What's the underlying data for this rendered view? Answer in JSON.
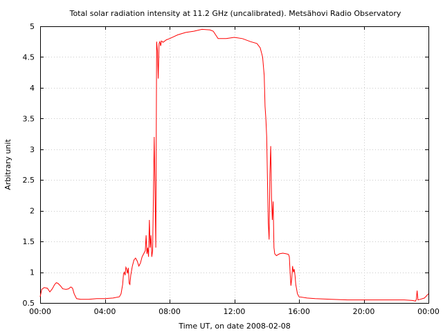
{
  "chart_data": {
    "type": "line",
    "title": "Total solar radiation intensity at 11.2 GHz (uncalibrated). Metsähovi Radio Observatory",
    "xlabel": "Time UT, on date 2008-02-08",
    "ylabel": "Arbitrary unit",
    "xlim": [
      0,
      24
    ],
    "ylim": [
      0.5,
      5
    ],
    "grid": true,
    "x_ticks": [
      {
        "value": 0,
        "label": "00:00"
      },
      {
        "value": 4,
        "label": "04:00"
      },
      {
        "value": 8,
        "label": "08:00"
      },
      {
        "value": 12,
        "label": "12:00"
      },
      {
        "value": 16,
        "label": "16:00"
      },
      {
        "value": 20,
        "label": "20:00"
      },
      {
        "value": 24,
        "label": "00:00"
      }
    ],
    "y_ticks": [
      {
        "value": 0.5,
        "label": "0.5"
      },
      {
        "value": 1,
        "label": "1"
      },
      {
        "value": 1.5,
        "label": "1.5"
      },
      {
        "value": 2,
        "label": "2"
      },
      {
        "value": 2.5,
        "label": "2.5"
      },
      {
        "value": 3,
        "label": "3"
      },
      {
        "value": 3.5,
        "label": "3.5"
      },
      {
        "value": 4,
        "label": "4"
      },
      {
        "value": 4.5,
        "label": "4.5"
      },
      {
        "value": 5,
        "label": "5"
      }
    ],
    "series": [
      {
        "color": "#ff0000",
        "x": [
          0.0,
          0.1,
          0.25,
          0.45,
          0.6,
          0.75,
          0.9,
          1.0,
          1.1,
          1.25,
          1.4,
          1.6,
          1.75,
          1.9,
          2.0,
          2.1,
          2.25,
          2.5,
          3.0,
          3.5,
          4.0,
          4.5,
          4.9,
          5.0,
          5.1,
          5.15,
          5.2,
          5.25,
          5.3,
          5.35,
          5.4,
          5.45,
          5.5,
          5.55,
          5.6,
          5.7,
          5.8,
          5.9,
          6.0,
          6.1,
          6.2,
          6.3,
          6.4,
          6.5,
          6.55,
          6.6,
          6.65,
          6.7,
          6.75,
          6.8,
          6.85,
          6.9,
          6.95,
          7.0,
          7.05,
          7.1,
          7.15,
          7.2,
          7.25,
          7.3,
          7.35,
          7.4,
          7.45,
          7.5,
          7.6,
          7.7,
          7.8,
          8.0,
          8.5,
          9.0,
          9.5,
          10.0,
          10.5,
          10.7,
          11.0,
          11.5,
          12.0,
          12.5,
          13.0,
          13.4,
          13.6,
          13.75,
          13.85,
          13.9,
          13.95,
          14.0,
          14.05,
          14.1,
          14.15,
          14.2,
          14.25,
          14.3,
          14.35,
          14.4,
          14.45,
          14.5,
          14.6,
          14.8,
          15.0,
          15.2,
          15.35,
          15.4,
          15.45,
          15.5,
          15.55,
          15.6,
          15.65,
          15.7,
          15.75,
          15.8,
          15.9,
          16.0,
          16.5,
          17.0,
          18.0,
          19.0,
          20.0,
          21.0,
          22.0,
          22.5,
          23.0,
          23.2,
          23.25,
          23.3,
          23.35,
          23.5,
          23.75,
          24.0
        ],
        "y": [
          0.6,
          0.72,
          0.75,
          0.74,
          0.68,
          0.73,
          0.8,
          0.83,
          0.82,
          0.78,
          0.73,
          0.72,
          0.73,
          0.76,
          0.74,
          0.65,
          0.57,
          0.56,
          0.56,
          0.57,
          0.57,
          0.58,
          0.6,
          0.65,
          0.8,
          0.97,
          1.0,
          0.95,
          1.08,
          1.05,
          0.98,
          1.07,
          0.82,
          0.8,
          0.95,
          1.1,
          1.2,
          1.23,
          1.18,
          1.1,
          1.15,
          1.25,
          1.3,
          1.35,
          1.6,
          1.3,
          1.4,
          1.25,
          1.85,
          1.4,
          1.6,
          1.25,
          1.35,
          2.2,
          3.2,
          2.3,
          1.4,
          4.75,
          4.6,
          4.15,
          4.72,
          4.75,
          4.68,
          4.76,
          4.74,
          4.76,
          4.78,
          4.8,
          4.86,
          4.9,
          4.92,
          4.95,
          4.94,
          4.92,
          4.8,
          4.8,
          4.82,
          4.8,
          4.75,
          4.72,
          4.65,
          4.5,
          4.2,
          3.7,
          3.5,
          3.2,
          2.5,
          1.8,
          1.53,
          2.6,
          3.05,
          2.2,
          1.85,
          2.15,
          1.4,
          1.3,
          1.27,
          1.3,
          1.31,
          1.3,
          1.29,
          1.25,
          1.0,
          0.78,
          0.9,
          1.1,
          1.0,
          1.05,
          0.95,
          0.8,
          0.65,
          0.6,
          0.58,
          0.57,
          0.56,
          0.55,
          0.55,
          0.55,
          0.55,
          0.55,
          0.54,
          0.53,
          0.56,
          0.7,
          0.55,
          0.56,
          0.58,
          0.65
        ]
      }
    ]
  }
}
